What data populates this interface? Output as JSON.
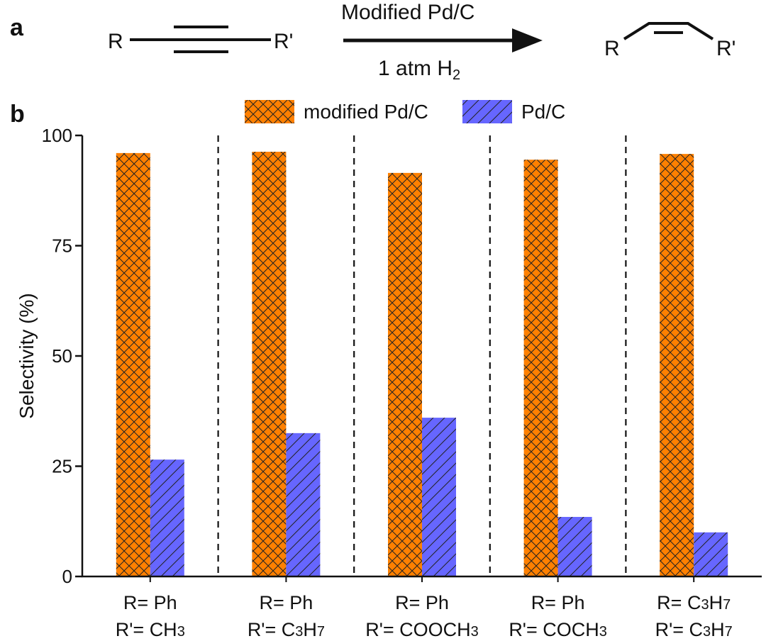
{
  "panel_a": {
    "label": "a",
    "reactant": {
      "r": "R",
      "r_prime": "R'"
    },
    "conditions_top": "Modified Pd/C",
    "conditions_bottom": "1 atm H",
    "conditions_bottom_sub": "2",
    "product": {
      "r": "R",
      "r_prime": "R'"
    }
  },
  "panel_b": {
    "label": "b"
  },
  "colors": {
    "modified": "#FF8000",
    "pdc": "#6666FF",
    "hatch": "#222222"
  },
  "chart_data": {
    "type": "bar",
    "ylabel": "Selectivity (%)",
    "xlabel": "",
    "ylim": [
      0,
      100
    ],
    "yticks": [
      0,
      25,
      50,
      75,
      100
    ],
    "legend_position": "top",
    "categories": [
      {
        "line1": "R= Ph",
        "line2": [
          [
            "R'= CH",
            "n"
          ],
          [
            "3",
            "s"
          ]
        ]
      },
      {
        "line1": "R= Ph",
        "line2": [
          [
            "R'= C",
            "n"
          ],
          [
            "3",
            "s"
          ],
          [
            "H",
            "n"
          ],
          [
            "7",
            "s"
          ]
        ]
      },
      {
        "line1": "R= Ph",
        "line2": [
          [
            "R'= COOCH",
            "n"
          ],
          [
            "3",
            "s"
          ]
        ]
      },
      {
        "line1": "R= Ph",
        "line2": [
          [
            "R'= COCH",
            "n"
          ],
          [
            "3",
            "s"
          ]
        ]
      },
      {
        "line1": [
          [
            "R= C",
            "n"
          ],
          [
            "3",
            "s"
          ],
          [
            "H",
            "n"
          ],
          [
            "7",
            "s"
          ]
        ],
        "line2": [
          [
            "R'= C",
            "n"
          ],
          [
            "3",
            "s"
          ],
          [
            "H",
            "n"
          ],
          [
            "7",
            "s"
          ]
        ]
      }
    ],
    "series": [
      {
        "name": "modified Pd/C",
        "values": [
          96,
          96.3,
          91.5,
          94.5,
          95.8
        ]
      },
      {
        "name": "Pd/C",
        "values": [
          26.5,
          32.5,
          36,
          13.5,
          10
        ]
      }
    ]
  }
}
